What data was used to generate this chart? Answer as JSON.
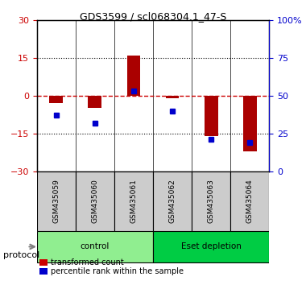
{
  "title": "GDS3599 / scl068304.1_47-S",
  "samples": [
    "GSM435059",
    "GSM435060",
    "GSM435061",
    "GSM435062",
    "GSM435063",
    "GSM435064"
  ],
  "red_values": [
    -3.0,
    -5.0,
    16.0,
    -1.0,
    -16.0,
    -22.0
  ],
  "blue_values_pct": [
    37,
    32,
    53,
    40,
    21,
    19
  ],
  "ylim_left": [
    -30,
    30
  ],
  "ylim_right": [
    0,
    100
  ],
  "yticks_left": [
    -30,
    -15,
    0,
    15,
    30
  ],
  "yticks_right": [
    0,
    25,
    50,
    75,
    100
  ],
  "groups": [
    {
      "label": "control",
      "indices": [
        0,
        1,
        2
      ],
      "color": "#90EE90"
    },
    {
      "label": "Eset depletion",
      "indices": [
        3,
        4,
        5
      ],
      "color": "#00CC44"
    }
  ],
  "legend_items": [
    {
      "label": "transformed count",
      "color": "#CC0000",
      "marker": "s"
    },
    {
      "label": "percentile rank within the sample",
      "color": "#0000CC",
      "marker": "s"
    }
  ],
  "bar_color": "#AA0000",
  "dot_color": "#0000CC",
  "zero_line_color": "#CC0000",
  "grid_color": "#000000",
  "bg_color": "#FFFFFF",
  "sample_bg_color": "#CCCCCC",
  "protocol_label": "protocol"
}
